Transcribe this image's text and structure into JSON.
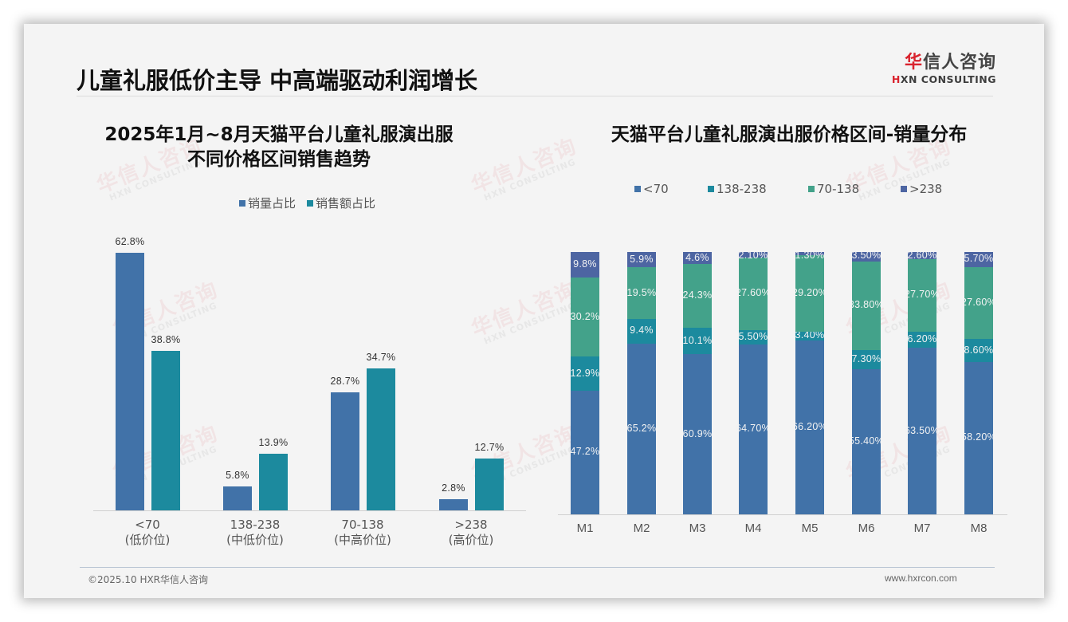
{
  "header": {
    "title": "儿童礼服低价主导 中高端驱动利润增长",
    "logo_cn_prefix": "华",
    "logo_cn_rest": "信人咨询",
    "logo_en_prefix": "H",
    "logo_en_rest": "XN CONSULTING"
  },
  "watermark": {
    "cn": "华信人咨询",
    "en": "HXN CONSULTING"
  },
  "colors": {
    "sales_volume": "#4172a8",
    "sales_amount": "#1c8a9e",
    "lt70": "#4172a8",
    "r138_238": "#1c8a9e",
    "r70_138": "#43a28a",
    "gt238": "#4d65a2",
    "background": "#f4f4f4"
  },
  "left_chart": {
    "title_line1": "2025年1月~8月天猫平台儿童礼服演出服",
    "title_line2": "不同价格区间销售趋势",
    "legend": [
      "销量占比",
      "销售额占比"
    ]
  },
  "right_chart": {
    "title": "天猫平台儿童礼服演出服价格区间-销量分布",
    "legend": [
      "<70",
      "138-238",
      "70-138",
      ">238"
    ]
  },
  "chart_data": [
    {
      "type": "bar",
      "title": "2025年1月~8月天猫平台儿童礼服演出服 不同价格区间销售趋势",
      "categories": [
        "<70 (低价位)",
        "138-238 (中低价位)",
        "70-138 (中高价位)",
        ">238 (高价位)"
      ],
      "category_lines": [
        [
          "<70",
          "(低价位)"
        ],
        [
          "138-238",
          "(中低价位)"
        ],
        [
          "70-138",
          "(中高价位)"
        ],
        [
          ">238",
          "(高价位)"
        ]
      ],
      "series": [
        {
          "name": "销量占比",
          "values": [
            62.8,
            5.8,
            28.7,
            2.8
          ],
          "labels": [
            "62.8%",
            "5.8%",
            "28.7%",
            "2.8%"
          ]
        },
        {
          "name": "销售额占比",
          "values": [
            38.8,
            13.9,
            34.7,
            12.7
          ],
          "labels": [
            "38.8%",
            "13.9%",
            "34.7%",
            "12.7%"
          ]
        }
      ],
      "xlabel": "",
      "ylabel": "",
      "ylim": [
        0,
        65
      ],
      "grid": false,
      "legend_position": "top"
    },
    {
      "type": "bar",
      "stacked": true,
      "title": "天猫平台儿童礼服演出服价格区间-销量分布",
      "categories": [
        "M1",
        "M2",
        "M3",
        "M4",
        "M5",
        "M6",
        "M7",
        "M8"
      ],
      "series": [
        {
          "name": "<70",
          "values": [
            47.2,
            65.2,
            60.9,
            64.7,
            66.2,
            55.4,
            63.5,
            58.2
          ],
          "labels": [
            "47.2%",
            "65.2%",
            "60.9%",
            "64.70%",
            "66.20%",
            "55.40%",
            "63.50%",
            "58.20%"
          ]
        },
        {
          "name": "138-238",
          "values": [
            12.9,
            9.4,
            10.1,
            5.5,
            3.4,
            7.3,
            6.2,
            8.6
          ],
          "labels": [
            "12.9%",
            "9.4%",
            "10.1%",
            "5.50%",
            "3.40%",
            "7.30%",
            "6.20%",
            "8.60%"
          ]
        },
        {
          "name": "70-138",
          "values": [
            30.2,
            19.5,
            24.3,
            27.6,
            29.2,
            33.8,
            27.7,
            27.6
          ],
          "labels": [
            "30.2%",
            "19.5%",
            "24.3%",
            "27.60%",
            "29.20%",
            "33.80%",
            "27.70%",
            "27.60%"
          ]
        },
        {
          "name": ">238",
          "values": [
            9.8,
            5.9,
            4.6,
            2.1,
            1.3,
            3.5,
            2.6,
            5.7
          ],
          "labels": [
            "9.8%",
            "5.9%",
            "4.6%",
            "2.10%",
            "1.30%",
            "3.50%",
            "2.60%",
            "5.70%"
          ]
        }
      ],
      "xlabel": "",
      "ylabel": "",
      "ylim": [
        0,
        100
      ],
      "grid": false,
      "legend_position": "top"
    }
  ],
  "footer": {
    "copyright": "©2025.10 HXR华信人咨询",
    "website": "www.hxrcon.com"
  }
}
